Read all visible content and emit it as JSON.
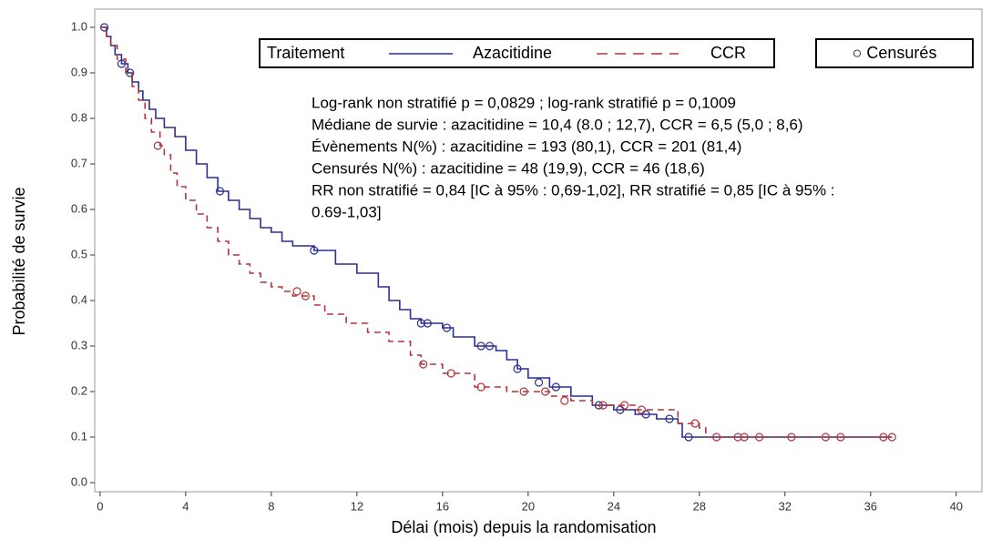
{
  "chart_data": {
    "type": "km",
    "x_label": "Délai (mois) depuis la randomisation",
    "y_label": "Probabilité de survie",
    "legend_title": "Traitement",
    "censored_label": "○ Censurés",
    "annotations": [
      "Log-rank non stratifié p = 0,0829 ; log-rank stratifié p = 0,1009",
      "Médiane de survie : azacitidine = 10,4 (8.0 ; 12,7), CCR = 6,5 (5,0 ; 8,6)",
      "Évènements N(%) : azacitidine = 193 (80,1), CCR = 201 (81,4)",
      "Censurés N(%) : azacitidine = 48 (19,9), CCR = 46 (18,6)",
      "RR non stratifié = 0,84 [IC à 95% : 0,69-1,02], RR stratifié = 0,85 [IC à 95% :",
      "0.69-1,03]"
    ],
    "xlim": [
      -0.25,
      41.2
    ],
    "ylim": [
      -0.02,
      1.04
    ],
    "xticks": [
      0,
      4,
      8,
      12,
      16,
      20,
      24,
      28,
      32,
      36,
      40
    ],
    "yticks": [
      {
        "value": 0,
        "label": "0.0"
      },
      0.1,
      0.2,
      0.3,
      0.4,
      0.5,
      0.6,
      0.7,
      0.8,
      0.9,
      {
        "value": 1,
        "label": "1.0"
      }
    ],
    "series": [
      {
        "name": "Azacitidine",
        "color": "#2b2f92",
        "dash": false,
        "x": [
          0,
          0.3,
          0.5,
          0.7,
          1.0,
          1.3,
          1.5,
          1.8,
          2.0,
          2.3,
          2.6,
          3.0,
          3.5,
          4.0,
          4.5,
          5.0,
          5.5,
          6.0,
          6.5,
          7.0,
          7.5,
          8.0,
          8.5,
          9.0,
          10,
          11,
          12,
          13,
          13.5,
          14,
          14.5,
          15,
          16,
          16.5,
          17.5,
          18.5,
          19,
          19.5,
          20,
          21,
          22,
          23,
          24,
          25,
          26,
          27,
          27.2,
          37
        ],
        "values": [
          1.0,
          0.98,
          0.96,
          0.94,
          0.92,
          0.9,
          0.88,
          0.86,
          0.84,
          0.82,
          0.8,
          0.78,
          0.76,
          0.73,
          0.7,
          0.67,
          0.64,
          0.62,
          0.6,
          0.58,
          0.56,
          0.55,
          0.53,
          0.52,
          0.51,
          0.48,
          0.46,
          0.43,
          0.4,
          0.38,
          0.36,
          0.35,
          0.34,
          0.32,
          0.3,
          0.29,
          0.27,
          0.25,
          0.23,
          0.21,
          0.19,
          0.17,
          0.16,
          0.15,
          0.14,
          0.13,
          0.1,
          0.1
        ],
        "censored_x": [
          0.2,
          1.0,
          1.4,
          5.6,
          10,
          15,
          15.3,
          16.2,
          17.8,
          18.2,
          19.5,
          20.5,
          21.3,
          23.3,
          24.3,
          25.5,
          26.6,
          27.5
        ],
        "censored_y": [
          1.0,
          0.92,
          0.9,
          0.64,
          0.51,
          0.35,
          0.35,
          0.34,
          0.3,
          0.3,
          0.25,
          0.22,
          0.21,
          0.17,
          0.16,
          0.15,
          0.14,
          0.1
        ]
      },
      {
        "name": "CCR",
        "color": "#b3343a",
        "dash": true,
        "x": [
          0,
          0.3,
          0.5,
          0.8,
          1.2,
          1.5,
          1.8,
          2.1,
          2.4,
          2.8,
          3.0,
          3.3,
          3.6,
          4.0,
          4.5,
          5,
          5.5,
          6.0,
          6.5,
          7,
          7.5,
          8.0,
          8.5,
          9,
          10,
          10.5,
          11.5,
          12.5,
          13.5,
          14.5,
          15,
          16,
          17.5,
          19,
          21,
          22,
          23,
          25,
          27,
          28,
          28.3,
          37
        ],
        "values": [
          1.0,
          0.98,
          0.96,
          0.93,
          0.9,
          0.87,
          0.84,
          0.8,
          0.77,
          0.74,
          0.72,
          0.68,
          0.65,
          0.62,
          0.59,
          0.56,
          0.53,
          0.5,
          0.48,
          0.46,
          0.44,
          0.43,
          0.42,
          0.41,
          0.39,
          0.37,
          0.35,
          0.33,
          0.31,
          0.28,
          0.26,
          0.24,
          0.21,
          0.2,
          0.19,
          0.18,
          0.17,
          0.16,
          0.13,
          0.12,
          0.1,
          0.1
        ],
        "censored_x": [
          2.7,
          9.2,
          9.6,
          15.1,
          16.4,
          17.8,
          19.8,
          20.8,
          21.7,
          23.5,
          24.5,
          25.3,
          27.8,
          28.8,
          29.8,
          30.1,
          30.8,
          32.3,
          33.9,
          34.6,
          36.6,
          37
        ],
        "censored_y": [
          0.74,
          0.42,
          0.41,
          0.26,
          0.24,
          0.21,
          0.2,
          0.2,
          0.18,
          0.17,
          0.17,
          0.16,
          0.13,
          0.1,
          0.1,
          0.1,
          0.1,
          0.1,
          0.1,
          0.1,
          0.1,
          0.1
        ]
      }
    ]
  }
}
